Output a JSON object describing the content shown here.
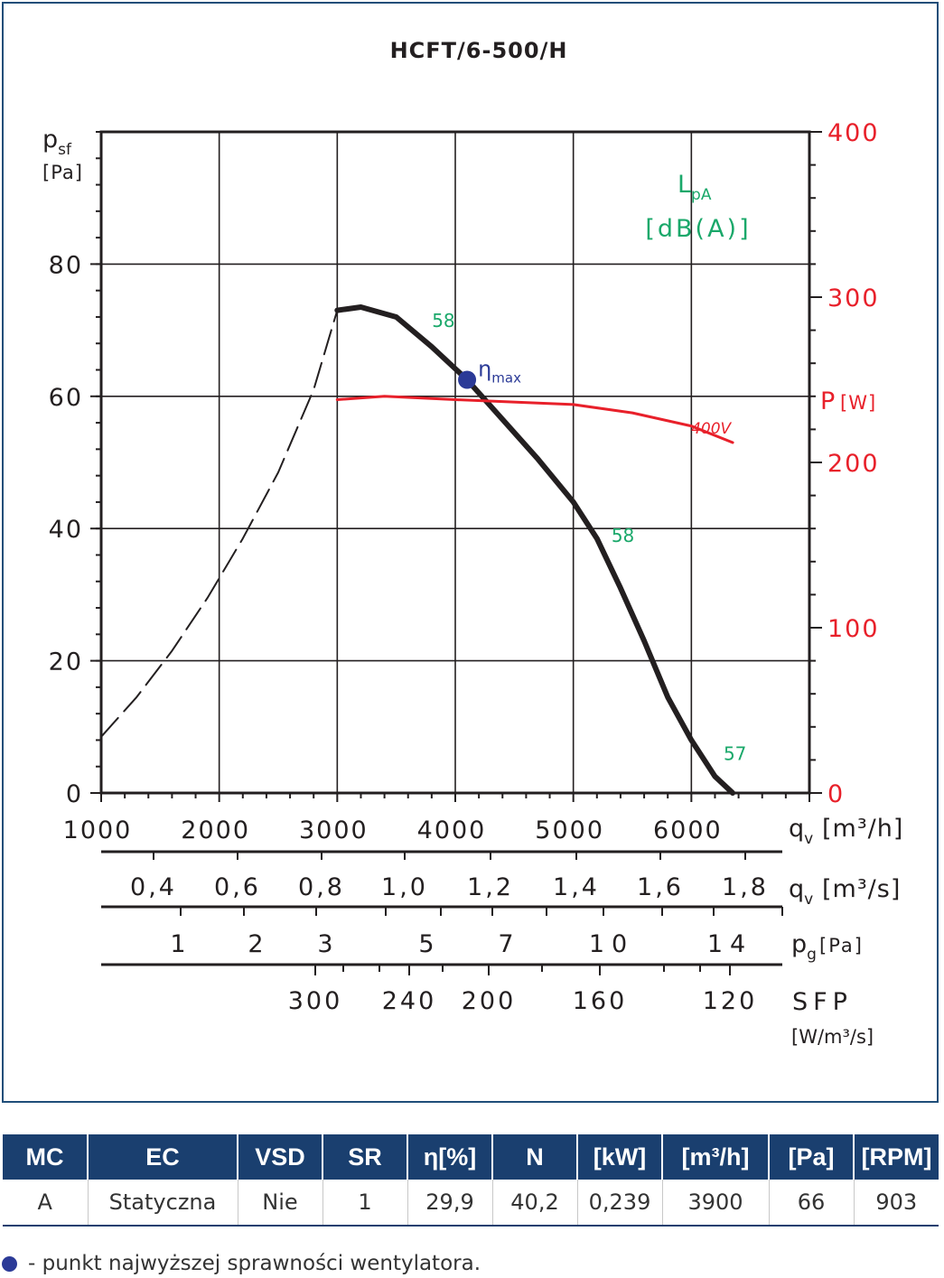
{
  "chart_data": {
    "type": "line",
    "title": "HCFT/6-500/H",
    "y_axis": {
      "label": "p",
      "label_sub": "sf",
      "unit": "[Pa]",
      "range": [
        0,
        100
      ],
      "ticks": [
        0,
        20,
        40,
        60,
        80
      ]
    },
    "y2_axis": {
      "label": "P",
      "unit": "[W]",
      "color": "#e8202a",
      "range": [
        0,
        400
      ],
      "ticks": [
        0,
        100,
        200,
        300,
        400
      ]
    },
    "x_axis": {
      "label": "q",
      "label_sub": "v",
      "unit": "[m³/h]",
      "range": [
        1000,
        7000
      ],
      "ticks": [
        1000,
        2000,
        3000,
        4000,
        5000,
        6000
      ]
    },
    "x_axis_m3s": {
      "label": "q",
      "label_sub": "v",
      "unit": "[m³/s]",
      "ticks": [
        "0,4",
        "0,6",
        "0,8",
        "1,0",
        "1,2",
        "1,4",
        "1,6",
        "1,8"
      ]
    },
    "x_axis_pg": {
      "label": "p",
      "label_sub": "g",
      "unit": "[Pa]",
      "ticks": [
        "1",
        "2",
        "3",
        "5",
        "7",
        "10",
        "14"
      ]
    },
    "x_axis_sfp": {
      "label": "SFP",
      "unit": "[W/m³/s]",
      "ticks": [
        "300",
        "240",
        "200",
        "160",
        "120"
      ]
    },
    "lpa_legend": {
      "label": "L",
      "label_sub": "pA",
      "unit": "[dB(A)]",
      "color": "#1aa86a"
    },
    "series": [
      {
        "id": "pressure",
        "color": "#231f20",
        "x": [
          3000,
          3200,
          3500,
          3800,
          4100,
          4400,
          4700,
          5000,
          5200,
          5400,
          5600,
          5800,
          6000,
          6200,
          6350
        ],
        "y": [
          73,
          73.5,
          72,
          67.5,
          62.5,
          56.5,
          50.5,
          44,
          38.5,
          31,
          23,
          14.5,
          8,
          2.5,
          0
        ]
      },
      {
        "id": "pressure-unstable",
        "dashed": true,
        "color": "#231f20",
        "x": [
          1000,
          1300,
          1600,
          1900,
          2200,
          2500,
          2800,
          3000
        ],
        "y": [
          8.5,
          14.5,
          21.5,
          29.5,
          38.5,
          48.5,
          61,
          73
        ]
      },
      {
        "id": "power",
        "name": "400V",
        "axis": "y2",
        "color": "#e8202a",
        "x": [
          3000,
          3400,
          4000,
          5000,
          5500,
          6000,
          6350
        ],
        "y": [
          238,
          240,
          238,
          235,
          230,
          222,
          212
        ]
      }
    ],
    "noise_labels": [
      {
        "text": "58",
        "x": 3900,
        "y": 70.5
      },
      {
        "text": "58",
        "x": 5420,
        "y": 38
      },
      {
        "text": "57",
        "x": 6370,
        "y": 5
      }
    ],
    "eta_max": {
      "label": "η",
      "label_sub": "max",
      "x": 4100,
      "y": 62.5,
      "color": "#2b3a97"
    }
  },
  "table": {
    "headers": [
      "MC",
      "EC",
      "VSD",
      "SR",
      "η[%]",
      "N",
      "[kW]",
      "[m³/h]",
      "[Pa]",
      "[RPM]"
    ],
    "row": [
      "A",
      "Statyczna",
      "Nie",
      "1",
      "29,9",
      "40,2",
      "0,239",
      "3900",
      "66",
      "903"
    ]
  },
  "legend_note": "- punkt najwyższej sprawności wentylatora."
}
